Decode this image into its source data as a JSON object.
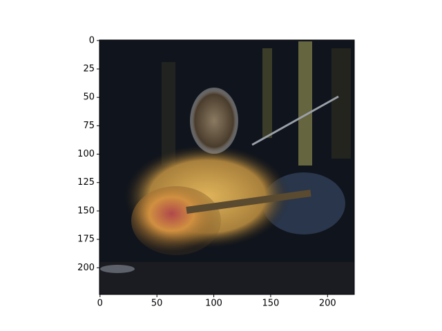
{
  "chart_data": {
    "type": "image",
    "xlim": [
      -0.5,
      223.5
    ],
    "ylim": [
      223.5,
      -0.5
    ],
    "xticks": [
      0,
      50,
      100,
      150,
      200
    ],
    "yticks": [
      0,
      25,
      50,
      75,
      100,
      125,
      150,
      175,
      200
    ]
  }
}
